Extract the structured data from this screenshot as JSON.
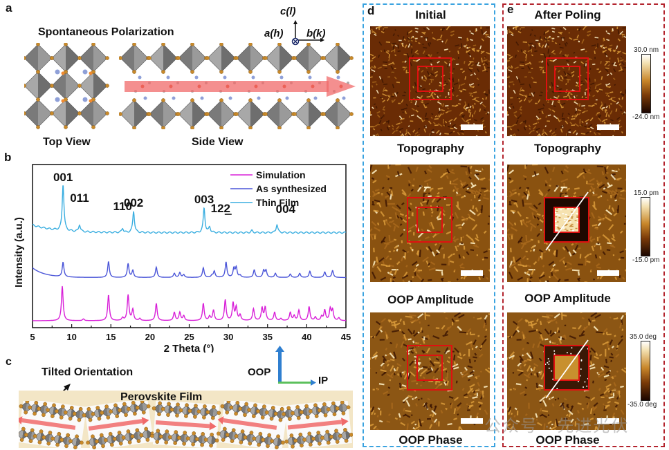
{
  "figure": {
    "panel_labels": {
      "a": "a",
      "b": "b",
      "c": "c",
      "d": "d",
      "e": "e"
    },
    "panel_a": {
      "title": "Spontaneous Polarization",
      "top_view": "Top View",
      "side_view": "Side View",
      "axes": {
        "c": "c(l)",
        "a": "a(h)",
        "b": "b(k)"
      },
      "colors": {
        "octahedron": "#8a8a8a",
        "atom": "#c98a2a",
        "arrow": "#f06a6a"
      }
    },
    "panel_c": {
      "tilted": "Tilted Orientation",
      "film": "Perovskite Film",
      "oop": "OOP",
      "ip": "IP",
      "colors": {
        "film_bg": "#f3e6c6",
        "arrow": "#f06a6a",
        "oop_arrow": "#2f7fd0",
        "ip_arrow": "#5cc05c"
      }
    },
    "panel_d": {
      "header": "Initial",
      "captions": [
        "Topography",
        "OOP Amplitude",
        "OOP Phase"
      ],
      "frame_color": "#3aa3e0"
    },
    "panel_e": {
      "header": "After Poling",
      "captions": [
        "Topography",
        "OOP Amplitude",
        "OOP Phase"
      ],
      "frame_color": "#b3242e",
      "colorbars": [
        {
          "max": "30.0 nm",
          "min": "-24.0 nm"
        },
        {
          "max": "15.0 pm",
          "min": "-15.0 pm"
        },
        {
          "max": "35.0 deg",
          "min": "-35.0 deg"
        }
      ]
    },
    "watermark": "公众号 · 先进光伏"
  },
  "chart_data": {
    "type": "line",
    "title": "",
    "xlabel": "2 Theta (°)",
    "ylabel": "Intensity (a.u.)",
    "xlim": [
      5,
      45
    ],
    "xticks": [
      5,
      10,
      15,
      20,
      25,
      30,
      35,
      40,
      45
    ],
    "grid": false,
    "legend_position": "top-right",
    "series": [
      {
        "name": "Simulation",
        "color": "#d81fd8",
        "baseline": 0.0,
        "peaks": [
          [
            8.8,
            1.0
          ],
          [
            11.5,
            0.05
          ],
          [
            14.7,
            0.74
          ],
          [
            16.5,
            0.08
          ],
          [
            17.2,
            0.74
          ],
          [
            17.8,
            0.32
          ],
          [
            18.7,
            0.06
          ],
          [
            20.8,
            0.5
          ],
          [
            23.1,
            0.24
          ],
          [
            23.8,
            0.24
          ],
          [
            24.3,
            0.14
          ],
          [
            26.8,
            0.5
          ],
          [
            27.6,
            0.12
          ],
          [
            28.1,
            0.3
          ],
          [
            29.6,
            0.6
          ],
          [
            30.6,
            0.5
          ],
          [
            31.0,
            0.38
          ],
          [
            31.5,
            0.16
          ],
          [
            33.2,
            0.34
          ],
          [
            34.3,
            0.36
          ],
          [
            34.7,
            0.38
          ],
          [
            35.9,
            0.24
          ],
          [
            36.7,
            0.06
          ],
          [
            37.9,
            0.24
          ],
          [
            38.4,
            0.14
          ],
          [
            39.0,
            0.3
          ],
          [
            40.3,
            0.4
          ],
          [
            41.1,
            0.1
          ],
          [
            41.9,
            0.12
          ],
          [
            42.3,
            0.3
          ],
          [
            43.0,
            0.34
          ],
          [
            43.3,
            0.3
          ],
          [
            44.1,
            0.08
          ]
        ]
      },
      {
        "name": "As synthesized",
        "color": "#4a55d8",
        "baseline": 1.25,
        "peaks": [
          [
            8.9,
            0.42
          ],
          [
            14.7,
            0.46
          ],
          [
            17.2,
            0.4
          ],
          [
            17.8,
            0.2
          ],
          [
            20.8,
            0.3
          ],
          [
            23.1,
            0.12
          ],
          [
            23.8,
            0.14
          ],
          [
            24.3,
            0.08
          ],
          [
            26.8,
            0.28
          ],
          [
            27.9,
            0.06
          ],
          [
            28.2,
            0.18
          ],
          [
            29.7,
            0.44
          ],
          [
            30.7,
            0.26
          ],
          [
            31.0,
            0.28
          ],
          [
            31.5,
            0.06
          ],
          [
            33.3,
            0.22
          ],
          [
            34.5,
            0.2
          ],
          [
            34.8,
            0.2
          ],
          [
            36.0,
            0.12
          ],
          [
            37.9,
            0.1
          ],
          [
            39.1,
            0.12
          ],
          [
            40.4,
            0.18
          ],
          [
            42.3,
            0.16
          ],
          [
            43.3,
            0.2
          ]
        ]
      },
      {
        "name": "Thin Film",
        "color": "#3aaee0",
        "baseline": 2.55,
        "peaks": [
          [
            8.9,
            1.34
          ],
          [
            11.0,
            0.2
          ],
          [
            16.5,
            0.12
          ],
          [
            17.9,
            0.62
          ],
          [
            26.9,
            0.72
          ],
          [
            27.6,
            0.16
          ],
          [
            33.0,
            0.06
          ],
          [
            36.2,
            0.24
          ]
        ],
        "peak_labels": [
          {
            "x": 8.9,
            "label": "001"
          },
          {
            "x": 11.0,
            "label": "011"
          },
          {
            "x": 16.5,
            "label": "110"
          },
          {
            "x": 17.9,
            "label": "002"
          },
          {
            "x": 26.9,
            "label": "003"
          },
          {
            "x": 29.0,
            "label": "122"
          },
          {
            "x": 37.3,
            "label": "004"
          }
        ]
      }
    ]
  }
}
